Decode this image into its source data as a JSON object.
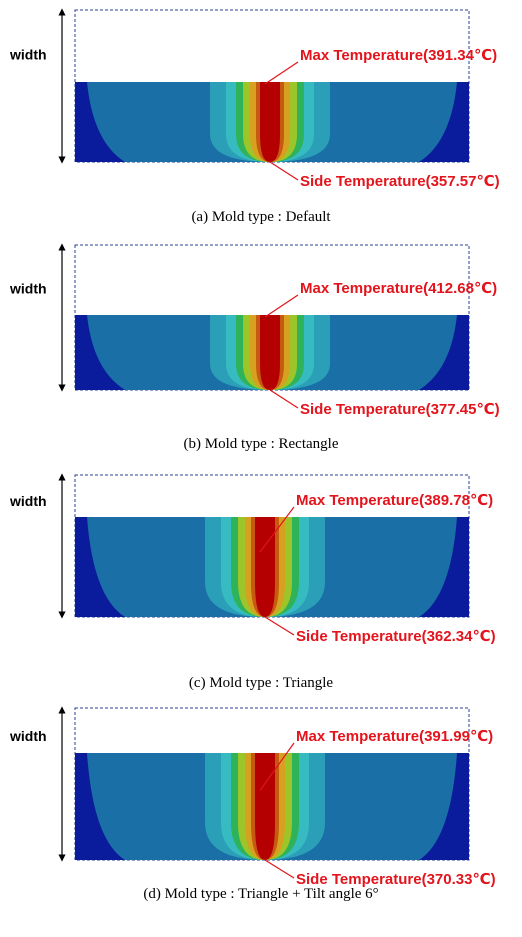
{
  "panels": [
    {
      "width_label": "width",
      "max_label": "Max Temperature(391.34℃)",
      "side_label": "Side Temperature(357.57℃)",
      "caption": "(a) Mold type : Default"
    },
    {
      "width_label": "width",
      "max_label": "Max Temperature(412.68℃)",
      "side_label": "Side Temperature(377.45℃)",
      "caption": "(b) Mold type : Rectangle"
    },
    {
      "width_label": "width",
      "max_label": "Max Temperature(389.78℃)",
      "side_label": "Side Temperature(362.34℃)",
      "caption": "(c) Mold type : Triangle"
    },
    {
      "width_label": "width",
      "max_label": "Max Temperature(391.99℃)",
      "side_label": "Side Temperature(370.33℃)",
      "caption": "(d) Mold type : Triangle + Tilt angle 6°"
    }
  ]
}
